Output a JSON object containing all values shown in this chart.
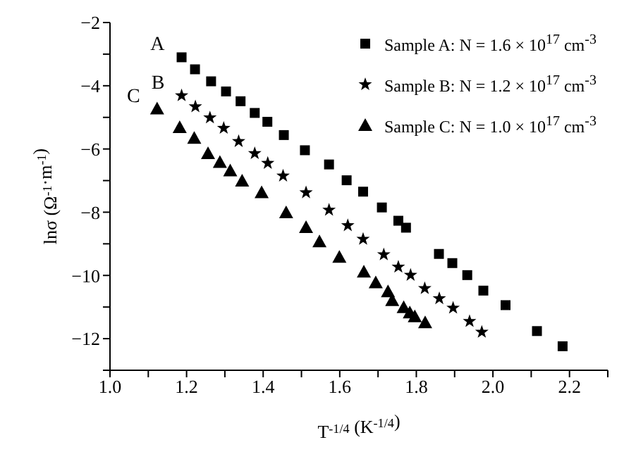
{
  "chart_data": {
    "type": "scatter",
    "xlabel": "T$^{-1/4}$ (K$^{-1/4}$)",
    "ylabel": "lnσ (Ω$^{-1}$·m$^{-1}$)",
    "xlim": [
      1.0,
      2.3
    ],
    "ylim": [
      -13,
      -2
    ],
    "xticks": [
      {
        "value": 1.0,
        "label": "1.0"
      },
      {
        "value": 1.1,
        "label": null
      },
      {
        "value": 1.2,
        "label": "1.2"
      },
      {
        "value": 1.3,
        "label": null
      },
      {
        "value": 1.4,
        "label": "1.4"
      },
      {
        "value": 1.5,
        "label": null
      },
      {
        "value": 1.6,
        "label": "1.6"
      },
      {
        "value": 1.7,
        "label": null
      },
      {
        "value": 1.8,
        "label": "1.8"
      },
      {
        "value": 1.9,
        "label": null
      },
      {
        "value": 2.0,
        "label": "2.0"
      },
      {
        "value": 2.1,
        "label": null
      },
      {
        "value": 2.2,
        "label": "2.2"
      },
      {
        "value": 2.3,
        "label": null
      }
    ],
    "yticks": [
      {
        "value": -13,
        "label": null
      },
      {
        "value": -12,
        "label": "−12"
      },
      {
        "value": -11,
        "label": null
      },
      {
        "value": -10,
        "label": "−10"
      },
      {
        "value": -9,
        "label": null
      },
      {
        "value": -8,
        "label": "−8"
      },
      {
        "value": -7,
        "label": null
      },
      {
        "value": -6,
        "label": "−6"
      },
      {
        "value": -5,
        "label": null
      },
      {
        "value": -4,
        "label": "−4"
      },
      {
        "value": -3,
        "label": null
      },
      {
        "value": -2,
        "label": "−2"
      }
    ],
    "grid": false,
    "legend": "top right",
    "annotations": [
      "A",
      "B",
      "C"
    ],
    "series": [
      {
        "name": "Sample A: N = 1.6 × 10$^{17}$ cm$^{-3}$",
        "color": "#000000",
        "marker": "square",
        "x": [
          1.187,
          1.222,
          1.264,
          1.303,
          1.341,
          1.378,
          1.411,
          1.454,
          1.509,
          1.572,
          1.618,
          1.661,
          1.71,
          1.753,
          1.773,
          1.859,
          1.894,
          1.933,
          1.975,
          2.033,
          2.115,
          2.182
        ],
        "values": [
          -3.1,
          -3.48,
          -3.86,
          -4.18,
          -4.49,
          -4.86,
          -5.14,
          -5.56,
          -6.04,
          -6.49,
          -6.99,
          -7.35,
          -7.85,
          -8.27,
          -8.49,
          -9.32,
          -9.61,
          -9.99,
          -10.48,
          -10.94,
          -11.76,
          -12.24
        ]
      },
      {
        "name": "Sample B: N = 1.2 × 10$^{17}$ cm$^{-3}$",
        "color": "#000000",
        "marker": "star",
        "x": [
          1.187,
          1.223,
          1.261,
          1.297,
          1.336,
          1.378,
          1.412,
          1.452,
          1.512,
          1.572,
          1.621,
          1.661,
          1.715,
          1.753,
          1.785,
          1.822,
          1.86,
          1.896,
          1.939,
          1.971
        ],
        "values": [
          -4.31,
          -4.66,
          -5.01,
          -5.34,
          -5.76,
          -6.14,
          -6.45,
          -6.85,
          -7.38,
          -7.93,
          -8.42,
          -8.85,
          -9.34,
          -9.73,
          -9.99,
          -10.41,
          -10.73,
          -11.03,
          -11.45,
          -11.79
        ]
      },
      {
        "name": "Sample C: N = 1.0 × 10$^{17}$ cm$^{-3}$",
        "color": "#000000",
        "marker": "triangle",
        "x": [
          1.123,
          1.182,
          1.22,
          1.256,
          1.287,
          1.314,
          1.345,
          1.396,
          1.46,
          1.512,
          1.547,
          1.599,
          1.663,
          1.694,
          1.726,
          1.737,
          1.767,
          1.783,
          1.796,
          1.823
        ],
        "values": [
          -4.73,
          -5.32,
          -5.66,
          -6.14,
          -6.42,
          -6.69,
          -7.01,
          -7.38,
          -8.01,
          -8.48,
          -8.93,
          -9.42,
          -9.89,
          -10.23,
          -10.51,
          -10.79,
          -11.01,
          -11.18,
          -11.3,
          -11.49
        ]
      }
    ]
  }
}
